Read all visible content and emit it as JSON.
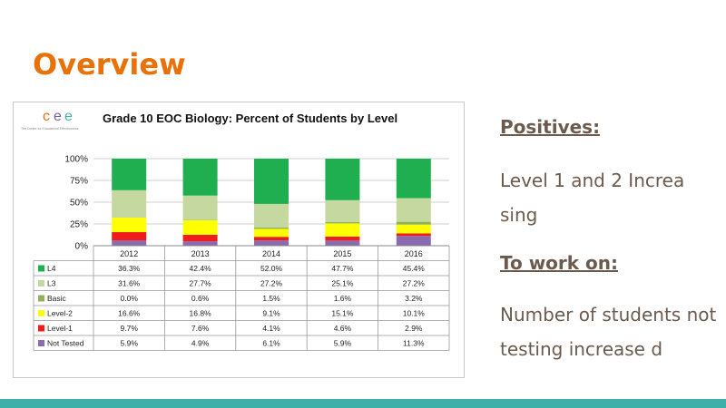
{
  "slide": {
    "title": "Overview",
    "positives_heading": "Positives:",
    "positives_text": "Level 1 and 2 Increa sing",
    "work_on_heading": "To work on:",
    "work_on_text": "Number of students not testing increase d"
  },
  "logo": {
    "letters": [
      "c",
      "e",
      "e"
    ],
    "letter_colors": [
      "#e8710a",
      "#7b5ea7",
      "#3fb0a8"
    ],
    "subtitle": "The Center for Educational Effectiveness"
  },
  "colors": {
    "accent_title": "#e8710a",
    "footer_bar": "#3fb0a8",
    "body_text": "#6b5a4e"
  },
  "chart_data": {
    "type": "bar",
    "stacked": true,
    "percent": true,
    "title": "Grade 10 EOC Biology: Percent of Students by Level",
    "categories": [
      "2012",
      "2013",
      "2014",
      "2015",
      "2016"
    ],
    "y_ticks": [
      "0%",
      "25%",
      "50%",
      "75%",
      "100%"
    ],
    "ylim": [
      0,
      100
    ],
    "grid": true,
    "legend": "table-below",
    "series": [
      {
        "name": "L4",
        "color": "#1faf50",
        "values": [
          36.3,
          42.4,
          52.0,
          47.7,
          45.4
        ],
        "labels": [
          "36.3%",
          "42.4%",
          "52.0%",
          "47.7%",
          "45.4%"
        ]
      },
      {
        "name": "L3",
        "color": "#c4d8a0",
        "values": [
          31.6,
          27.7,
          27.2,
          25.1,
          27.2
        ],
        "labels": [
          "31.6%",
          "27.7%",
          "27.2%",
          "25.1%",
          "27.2%"
        ]
      },
      {
        "name": "Basic",
        "color": "#8fb25a",
        "values": [
          0.0,
          0.6,
          1.5,
          1.6,
          3.2
        ],
        "labels": [
          "0.0%",
          "0.6%",
          "1.5%",
          "1.6%",
          "3.2%"
        ]
      },
      {
        "name": "Level-2",
        "color": "#ffff00",
        "values": [
          16.6,
          16.8,
          9.1,
          15.1,
          10.1
        ],
        "labels": [
          "16.6%",
          "16.8%",
          "9.1%",
          "15.1%",
          "10.1%"
        ]
      },
      {
        "name": "Level-1",
        "color": "#ee1c1c",
        "values": [
          9.7,
          7.6,
          4.1,
          4.6,
          2.9
        ],
        "labels": [
          "9.7%",
          "7.6%",
          "4.1%",
          "4.6%",
          "2.9%"
        ]
      },
      {
        "name": "Not Tested",
        "color": "#8b6bb0",
        "values": [
          5.9,
          4.9,
          6.1,
          5.9,
          11.3
        ],
        "labels": [
          "5.9%",
          "4.9%",
          "6.1%",
          "5.9%",
          "11.3%"
        ]
      }
    ]
  }
}
